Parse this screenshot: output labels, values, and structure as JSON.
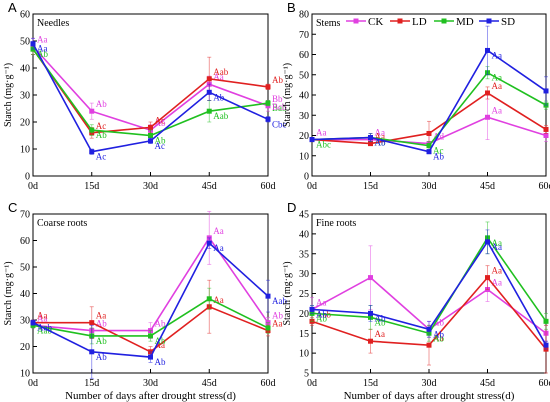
{
  "x_axis_label": "Number of days after drought stress(d)",
  "y_axis_label": "Starch (mg·g⁻¹)",
  "categories": [
    "0d",
    "15d",
    "30d",
    "45d",
    "60d"
  ],
  "legend": [
    {
      "name": "CK",
      "color": "#e040e0"
    },
    {
      "name": "LD",
      "color": "#e02020"
    },
    {
      "name": "MD",
      "color": "#20c020"
    },
    {
      "name": "SD",
      "color": "#2020e0"
    }
  ],
  "chart_data": [
    {
      "type": "line",
      "panel": "A",
      "title": "Needles",
      "ylim": [
        0,
        60
      ],
      "yticks": [
        0,
        10,
        20,
        30,
        40,
        50,
        60
      ],
      "categories": [
        "0d",
        "15d",
        "30d",
        "45d",
        "60d"
      ],
      "series": [
        {
          "name": "CK",
          "values": [
            48,
            24,
            17,
            34,
            26
          ],
          "errors": [
            3,
            3,
            2,
            3,
            2
          ],
          "labels": [
            "Aa",
            "Ab",
            "Ab",
            "Aa",
            "Bb"
          ]
        },
        {
          "name": "LD",
          "values": [
            47,
            16,
            18,
            36,
            33
          ],
          "errors": [
            2,
            2,
            2,
            8,
            1
          ],
          "labels": [
            "",
            "Ac",
            "Ac",
            "Aab",
            "Ab"
          ]
        },
        {
          "name": "MD",
          "values": [
            47,
            17,
            15,
            24,
            27
          ],
          "errors": [
            2,
            2,
            2,
            4,
            1
          ],
          "labels": [
            "Ab",
            "Ab",
            "Ab",
            "Aab",
            "Bab"
          ]
        },
        {
          "name": "SD",
          "values": [
            49,
            9,
            13,
            31,
            21
          ],
          "errors": [
            2,
            1,
            1,
            3,
            1
          ],
          "labels": [
            "Aa",
            "Ac",
            "Ac",
            "Ab",
            "Cbc"
          ]
        }
      ],
      "extra_labels": [
        {
          "at": "60d",
          "text": "Bcb",
          "color": "#e040e0"
        }
      ]
    },
    {
      "type": "line",
      "panel": "B",
      "title": "Stems",
      "ylim": [
        0,
        80
      ],
      "yticks": [
        0,
        10,
        20,
        30,
        40,
        50,
        60,
        70,
        80
      ],
      "categories": [
        "0d",
        "15d",
        "30d",
        "45d",
        "60d"
      ],
      "series": [
        {
          "name": "CK",
          "values": [
            18,
            18,
            16,
            29,
            20
          ],
          "errors": [
            1,
            3,
            4,
            11,
            3
          ],
          "labels": [
            "Aa",
            "Aa",
            "Ad",
            "Aa",
            "Ba"
          ]
        },
        {
          "name": "LD",
          "values": [
            18,
            16,
            21,
            41,
            23
          ],
          "errors": [
            1,
            1,
            6,
            3,
            2
          ],
          "labels": [
            "",
            "Aa",
            "",
            "Aa",
            "Ba"
          ]
        },
        {
          "name": "MD",
          "values": [
            18,
            19,
            15,
            51,
            35
          ],
          "errors": [
            1,
            2,
            2,
            3,
            2
          ],
          "labels": [
            "Abc",
            "Ab",
            "Ac",
            "Aa",
            "ABb"
          ]
        },
        {
          "name": "SD",
          "values": [
            18,
            19,
            12,
            62,
            42
          ],
          "errors": [
            1,
            2,
            1,
            12,
            7
          ],
          "labels": [
            "",
            "Ab",
            "Ab",
            "Aa",
            "Aa"
          ]
        }
      ]
    },
    {
      "type": "line",
      "panel": "C",
      "title": "Coarse roots",
      "ylim": [
        10,
        70
      ],
      "yticks": [
        10,
        20,
        30,
        40,
        50,
        60,
        70
      ],
      "categories": [
        "0d",
        "15d",
        "30d",
        "45d",
        "60d"
      ],
      "series": [
        {
          "name": "CK",
          "values": [
            28,
            26,
            26,
            61,
            29
          ],
          "errors": [
            1,
            3,
            3,
            10,
            2
          ],
          "labels": [
            "Aa",
            "Ab",
            "Ab",
            "Aa",
            "Ab"
          ]
        },
        {
          "name": "LD",
          "values": [
            29,
            29,
            18,
            35,
            26
          ],
          "errors": [
            1,
            6,
            2,
            10,
            2
          ],
          "labels": [
            "Aa",
            "Aa",
            "Aa",
            "Aa",
            "Aa"
          ]
        },
        {
          "name": "MD",
          "values": [
            28,
            24,
            24,
            38,
            27
          ],
          "errors": [
            1,
            3,
            2,
            4,
            2
          ],
          "labels": [
            "Aab",
            "Ab",
            "Ab",
            "",
            ""
          ]
        },
        {
          "name": "SD",
          "values": [
            29,
            18,
            16,
            59,
            39
          ],
          "errors": [
            1,
            10,
            2,
            2,
            6
          ],
          "labels": [
            "Aab",
            "Ab",
            "Ab",
            "Aa",
            "Aab"
          ]
        }
      ]
    },
    {
      "type": "line",
      "panel": "D",
      "title": "Fine roots",
      "ylim": [
        5,
        45
      ],
      "yticks": [
        5,
        10,
        15,
        20,
        25,
        30,
        35,
        40,
        45
      ],
      "categories": [
        "0d",
        "15d",
        "30d",
        "45d",
        "60d"
      ],
      "series": [
        {
          "name": "CK",
          "values": [
            21,
            29,
            16,
            26,
            15
          ],
          "errors": [
            3,
            8,
            2,
            3,
            2
          ],
          "labels": [
            "Aa",
            "",
            "Ab",
            "Aa",
            "Aa"
          ]
        },
        {
          "name": "LD",
          "values": [
            18,
            13,
            12,
            29,
            11
          ],
          "errors": [
            1,
            3,
            5,
            3,
            6
          ],
          "labels": [
            "Aab",
            "Aa",
            "Aa",
            "Aa",
            "Aa"
          ]
        },
        {
          "name": "MD",
          "values": [
            20,
            19,
            15,
            39,
            18
          ],
          "errors": [
            2,
            3,
            2,
            4,
            2
          ],
          "labels": [
            "Ab",
            "Ab",
            "Ab",
            "Aa",
            "Ab"
          ]
        },
        {
          "name": "SD",
          "values": [
            21,
            20,
            16,
            38,
            12
          ],
          "errors": [
            1,
            2,
            2,
            3,
            1
          ],
          "labels": [
            "Ab",
            "Ab",
            "Ab",
            "Aa",
            "Ab"
          ]
        }
      ]
    }
  ]
}
